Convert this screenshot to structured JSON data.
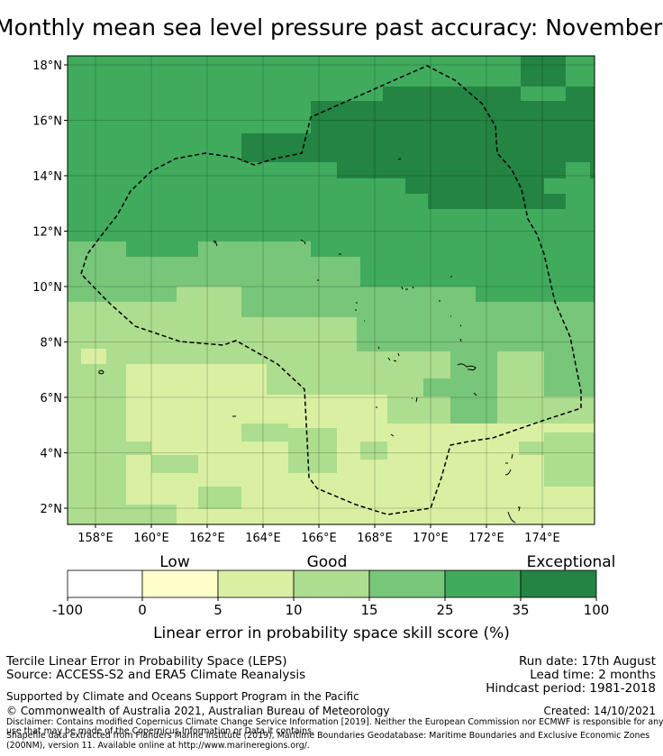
{
  "title": "Monthly mean sea level pressure past accuracy: November - February",
  "map": {
    "lat_ticks": [
      "2°N",
      "4°N",
      "6°N",
      "8°N",
      "10°N",
      "12°N",
      "14°N",
      "16°N",
      "18°N"
    ],
    "lon_ticks": [
      "158°E",
      "160°E",
      "162°E",
      "164°E",
      "166°E",
      "168°E",
      "170°E",
      "172°E",
      "174°E"
    ],
    "colors": {
      "c0": "#ffffff",
      "c1": "#ffffcc",
      "c2": "#d9f0a3",
      "c3": "#addd8e",
      "c4": "#78c679",
      "c5": "#41ab5d",
      "c6": "#238443"
    }
  },
  "colorbar": {
    "categories": [
      "Low",
      "Good",
      "Exceptional"
    ],
    "ticks": [
      "-100",
      "0",
      "5",
      "10",
      "15",
      "25",
      "35",
      "100"
    ],
    "label": "Linear error in probability space skill score (%)"
  },
  "footer": {
    "method": "Tercile Linear Error in Probability Space (LEPS)",
    "source": "Source: ACCESS-S2 and ERA5 Climate Reanalysis",
    "run_date": "Run date: 17th August",
    "lead_time": "Lead time: 2 months",
    "hindcast": "Hindcast period: 1981-2018",
    "support": "Supported by Climate and Oceans Support Program in the Pacific",
    "copyright": "© Commonwealth of Australia 2021, Australian Bureau of Meteorology",
    "created": "Created: 14/10/2021",
    "disclaimer_1": "Disclaimer: Contains modified Copernicus Climate Change Service Information [2019]. Neither the European Commission nor ECMWF is responsible for any",
    "disclaimer_2": "use that may be made of the Copernicus Information or Data it contains.",
    "shapefile_1": "Shapefile data extracted from Flanders Marine Institute (2019), Maritime Boundaries Geodatabase: Maritime Boundaries and Exclusive Economic Zones",
    "shapefile_2": "(200NM), version 11. Available online at http://www.marineregions.org/."
  }
}
